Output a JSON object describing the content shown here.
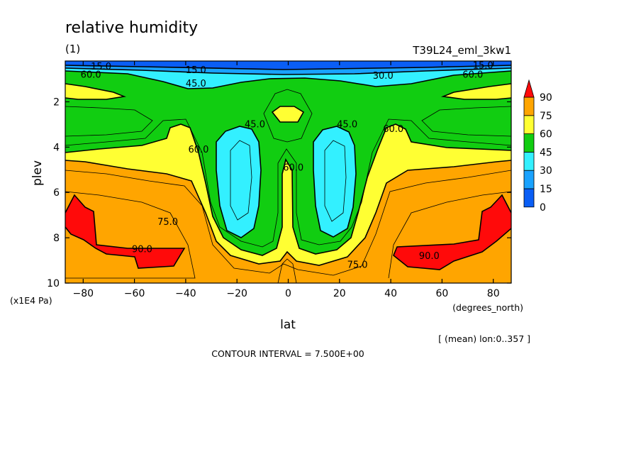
{
  "chart_data": {
    "type": "contour",
    "title": "relative humidity",
    "subtitle": "(1)",
    "experiment": "T39L24_eml_3kw1",
    "xlabel": "lat",
    "ylabel": "plev",
    "xunits": "(degrees_north)",
    "yunits": "(x1E4 Pa)",
    "xlim": [
      -87,
      87
    ],
    "ylim": [
      0.2,
      10
    ],
    "y_axis_inverted": true,
    "x_ticks": [
      -80,
      -60,
      -40,
      -20,
      0,
      20,
      40,
      60,
      80
    ],
    "x_tick_labels": [
      "−80",
      "−60",
      "−40",
      "−20",
      "0",
      "20",
      "40",
      "60",
      "80"
    ],
    "y_ticks": [
      2,
      4,
      6,
      8,
      10
    ],
    "y_tick_labels": [
      "2",
      "4",
      "6",
      "8",
      "10"
    ],
    "mean_note": "[ (mean) lon:0..357 ]",
    "contour_interval_text": "CONTOUR INTERVAL = 7.500E+00",
    "contour_interval": 7.5,
    "colorbar": {
      "levels": [
        0,
        15,
        30,
        45,
        60,
        75,
        90
      ],
      "tick_labels": [
        "0",
        "15",
        "30",
        "45",
        "60",
        "75",
        "90"
      ],
      "colors": [
        "#0a5ef5",
        "#19a2ff",
        "#33f0ff",
        "#11cd11",
        "#ffff33",
        "#ffa500",
        "#ff0a0a"
      ]
    },
    "contour_labels": [
      {
        "text": "15.0",
        "lat": -73,
        "plev": 0.55
      },
      {
        "text": "60.0",
        "lat": -77,
        "plev": 0.9
      },
      {
        "text": "15.0",
        "lat": -36,
        "plev": 0.7
      },
      {
        "text": "45.0",
        "lat": -36,
        "plev": 1.3
      },
      {
        "text": "30.0",
        "lat": 37,
        "plev": 0.95
      },
      {
        "text": "15.0",
        "lat": 76,
        "plev": 0.5
      },
      {
        "text": "60.0",
        "lat": 72,
        "plev": 0.9
      },
      {
        "text": "45.0",
        "lat": -13,
        "plev": 3.1
      },
      {
        "text": "45.0",
        "lat": 23,
        "plev": 3.1
      },
      {
        "text": "60.0",
        "lat": -35,
        "plev": 4.2
      },
      {
        "text": "60.0",
        "lat": 2,
        "plev": 5.0
      },
      {
        "text": "60.0",
        "lat": 41,
        "plev": 3.3
      },
      {
        "text": "75.0",
        "lat": -47,
        "plev": 7.4
      },
      {
        "text": "90.0",
        "lat": -57,
        "plev": 8.6
      },
      {
        "text": "90.0",
        "lat": 55,
        "plev": 8.9
      },
      {
        "text": "75.0",
        "lat": 27,
        "plev": 9.3
      }
    ]
  }
}
